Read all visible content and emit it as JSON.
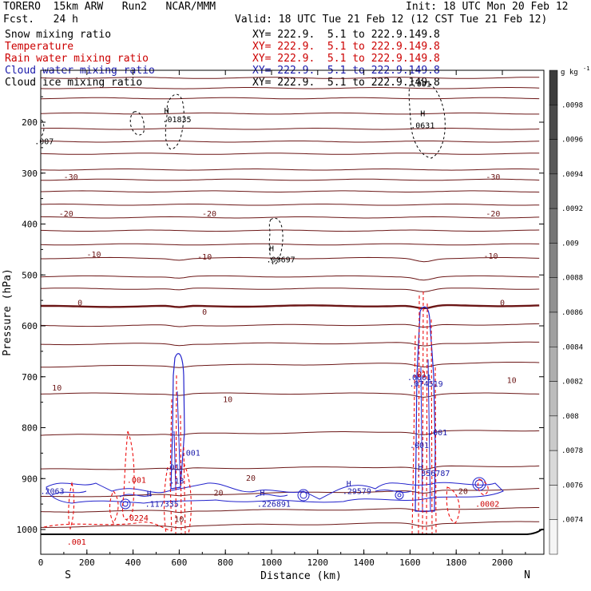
{
  "header": {
    "model": "TORERO  15km ARW   Run2   NCAR/MMM",
    "init": "Init: 18 UTC Mon 20 Feb 12",
    "fcst": "Fcst.   24 h",
    "valid": "Valid: 18 UTC Tue 21 Feb 12 (12 CST Tue 21 Feb 12)"
  },
  "legend": [
    {
      "name": "Snow mixing ratio",
      "color": "#000000",
      "xy": "XY= 222.9.  5.1 to 222.9.149.8"
    },
    {
      "name": "Temperature",
      "color": "#cc0000",
      "xy": "XY= 222.9.  5.1 to 222.9.149.8"
    },
    {
      "name": "Rain water mixing ratio",
      "color": "#cc0000",
      "xy": "XY= 222.9.  5.1 to 222.9.149.8"
    },
    {
      "name": "Cloud water mixing ratio",
      "color": "#1a1aaa",
      "xy": "XY= 222.9.  5.1 to 222.9.149.8"
    },
    {
      "name": "Cloud ice mixing ratio",
      "color": "#000000",
      "xy": "XY= 222.9.  5.1 to 222.9.149.8"
    }
  ],
  "colors": {
    "temp_line": "#6b1616",
    "rain": "#ee1111",
    "cloud": "#2222cc",
    "snow": "#000000"
  },
  "chart_data": {
    "type": "cross-section",
    "xlabel": "Distance (km)",
    "ylabel": "Pressure (hPa)",
    "xlim": [
      0,
      2180
    ],
    "ylim": [
      1050,
      100
    ],
    "x_ticks": [
      0,
      200,
      400,
      600,
      800,
      1000,
      1200,
      1400,
      1600,
      1800,
      2000
    ],
    "x_tick_labels": [
      "0",
      "200",
      "400",
      "600",
      "800",
      "1000",
      "1200",
      "1400",
      "1600",
      "1800",
      "2000"
    ],
    "y_ticks": [
      200,
      300,
      400,
      500,
      600,
      700,
      800,
      900,
      1000
    ],
    "y_tick_labels": [
      "200",
      "300",
      "400",
      "500",
      "600",
      "700",
      "800",
      "900",
      "1000"
    ],
    "end_labels": {
      "left": "S",
      "right": "N"
    },
    "colorbar": {
      "unit": "g kg",
      "unit_exp": "-1",
      "labels": [
        ".0098",
        ".0096",
        ".0094",
        ".0092",
        ".009",
        ".0088",
        ".0086",
        ".0084",
        ".0082",
        ".008",
        ".0078",
        ".0076",
        ".0074"
      ]
    },
    "temperature_contours": [
      {
        "p0": 113,
        "p1": 113,
        "label": "",
        "lx": 0
      },
      {
        "p0": 133,
        "p1": 133,
        "label": "",
        "lx": 0
      },
      {
        "p0": 153,
        "p1": 153,
        "label": "",
        "lx": 0
      },
      {
        "p0": 183,
        "p1": 183,
        "label": "",
        "lx": 0
      },
      {
        "p0": 213,
        "p1": 213,
        "label": "",
        "lx": 0
      },
      {
        "p0": 238,
        "p1": 238,
        "label": "",
        "lx": 0
      },
      {
        "p0": 262,
        "p1": 262,
        "label": "",
        "lx": 0
      },
      {
        "p0": 293,
        "p1": 293,
        "label": "",
        "lx": 0
      },
      {
        "p0": 313,
        "p1": 313,
        "label": "-30",
        "lx": 250
      },
      {
        "p0": 336,
        "p1": 336,
        "label": "",
        "lx": 0
      },
      {
        "p0": 362,
        "p1": 362,
        "label": "",
        "lx": 0
      },
      {
        "p0": 387,
        "p1": 387,
        "label": "-20",
        "lx": 210
      },
      {
        "p0": 413,
        "p1": 413,
        "label": "",
        "lx": 0
      },
      {
        "p0": 440,
        "p1": 440,
        "label": "",
        "lx": 0
      },
      {
        "p0": 467,
        "p1": 467,
        "label": "-10",
        "lx": 230
      },
      {
        "p0": 503,
        "p1": 503,
        "label": "",
        "lx": 0
      },
      {
        "p0": 527,
        "p1": 527,
        "label": "",
        "lx": 0
      },
      {
        "p0": 562,
        "p1": 560,
        "label": "0",
        "lx": 170
      },
      {
        "p0": 600,
        "p1": 597,
        "label": "",
        "lx": 0
      },
      {
        "p0": 636,
        "p1": 633,
        "label": "",
        "lx": 0
      },
      {
        "p0": 680,
        "p1": 672,
        "label": "10",
        "lx": 120
      },
      {
        "p0": 733,
        "p1": 733,
        "label": "",
        "lx": 0
      },
      {
        "p0": 815,
        "p1": 805,
        "label": "",
        "lx": 0
      },
      {
        "p0": 882,
        "p1": 875,
        "label": "",
        "lx": 0
      },
      {
        "p0": 936,
        "p1": 920,
        "label": "",
        "lx": 0
      },
      {
        "p0": 965,
        "p1": 958,
        "label": "",
        "lx": 0
      },
      {
        "p0": 995,
        "p1": 985,
        "label": "",
        "lx": 0
      }
    ],
    "contour_labels": [
      {
        "text": "-30",
        "x": 130,
        "p": 313,
        "color": "#6b1616"
      },
      {
        "text": "-30",
        "x": 1960,
        "p": 313,
        "color": "#6b1616"
      },
      {
        "text": "-20",
        "x": 110,
        "p": 385,
        "color": "#6b1616"
      },
      {
        "text": "-20",
        "x": 730,
        "p": 385,
        "color": "#6b1616"
      },
      {
        "text": "-20",
        "x": 1960,
        "p": 385,
        "color": "#6b1616"
      },
      {
        "text": "-10",
        "x": 230,
        "p": 465,
        "color": "#6b1616"
      },
      {
        "text": "-10",
        "x": 710,
        "p": 470,
        "color": "#6b1616"
      },
      {
        "text": "-10",
        "x": 1950,
        "p": 468,
        "color": "#6b1616"
      },
      {
        "text": "0",
        "x": 170,
        "p": 560,
        "color": "#6b1616"
      },
      {
        "text": "0",
        "x": 710,
        "p": 578,
        "color": "#6b1616"
      },
      {
        "text": "0",
        "x": 2000,
        "p": 560,
        "color": "#6b1616"
      },
      {
        "text": "10",
        "x": 70,
        "p": 727,
        "color": "#6b1616"
      },
      {
        "text": "10",
        "x": 810,
        "p": 750,
        "color": "#6b1616"
      },
      {
        "text": "10",
        "x": 2040,
        "p": 712,
        "color": "#6b1616"
      },
      {
        "text": "20",
        "x": 910,
        "p": 904,
        "color": "#6b1616"
      },
      {
        "text": "20",
        "x": 770,
        "p": 933,
        "color": "#6b1616"
      },
      {
        "text": "20",
        "x": 1830,
        "p": 930,
        "color": "#6b1616"
      },
      {
        "text": "10",
        "x": 600,
        "p": 985,
        "color": "#6b1616"
      }
    ],
    "extrema": [
      {
        "text": ".001",
        "x": 1650,
        "p": 130,
        "color": "#000000"
      },
      {
        "text": "H",
        "x": 1655,
        "p": 188,
        "color": "#000000"
      },
      {
        "text": ".0631",
        "x": 1655,
        "p": 212,
        "color": "#000000"
      },
      {
        "text": "H",
        "x": 545,
        "p": 183,
        "color": "#000000"
      },
      {
        "text": ".01835",
        "x": 590,
        "p": 200,
        "color": "#000000"
      },
      {
        "text": ".007",
        "x": 15,
        "p": 243,
        "color": "#000000"
      },
      {
        "text": "H",
        "x": 1000,
        "p": 453,
        "color": "#000000"
      },
      {
        "text": ".00697",
        "x": 1040,
        "p": 475,
        "color": "#000000"
      },
      {
        "text": ".001",
        "x": 650,
        "p": 855,
        "color": "#1a1aaa"
      },
      {
        "text": ".01",
        "x": 570,
        "p": 883,
        "color": "#1a1aaa"
      },
      {
        "text": ".13",
        "x": 590,
        "p": 910,
        "color": "#1a1aaa"
      },
      {
        "text": ".0001",
        "x": 1640,
        "p": 707,
        "color": "#1a1aaa"
      },
      {
        "text": ".074519",
        "x": 1670,
        "p": 719,
        "color": "#1a1aaa"
      },
      {
        "text": ".001",
        "x": 1720,
        "p": 815,
        "color": "#1a1aaa"
      },
      {
        "text": ".001",
        "x": 1640,
        "p": 840,
        "color": "#1a1aaa"
      },
      {
        "text": "H",
        "x": 1645,
        "p": 883,
        "color": "#1a1aaa"
      },
      {
        "text": ".356787",
        "x": 1700,
        "p": 895,
        "color": "#1a1aaa"
      },
      {
        "text": "H",
        "x": 1335,
        "p": 915,
        "color": "#1a1aaa"
      },
      {
        "text": ".29579",
        "x": 1370,
        "p": 930,
        "color": "#1a1aaa"
      },
      {
        "text": "H",
        "x": 470,
        "p": 935,
        "color": "#1a1aaa"
      },
      {
        "text": ".117335",
        "x": 525,
        "p": 955,
        "color": "#1a1aaa"
      },
      {
        "text": "H",
        "x": 960,
        "p": 933,
        "color": "#1a1aaa"
      },
      {
        "text": ".226891",
        "x": 1010,
        "p": 955,
        "color": "#1a1aaa"
      },
      {
        "text": ".2063",
        "x": 50,
        "p": 930,
        "color": "#1a1aaa"
      },
      {
        "text": ".001",
        "x": 415,
        "p": 908,
        "color": "#cc0000"
      },
      {
        "text": ".0224",
        "x": 415,
        "p": 983,
        "color": "#cc0000"
      },
      {
        "text": ".001",
        "x": 155,
        "p": 1030,
        "color": "#cc0000"
      },
      {
        "text": ".0002",
        "x": 1935,
        "p": 955,
        "color": "#cc0000"
      },
      {
        "text": ".01",
        "x": 1640,
        "p": 700,
        "color": "#cc0000"
      }
    ]
  }
}
